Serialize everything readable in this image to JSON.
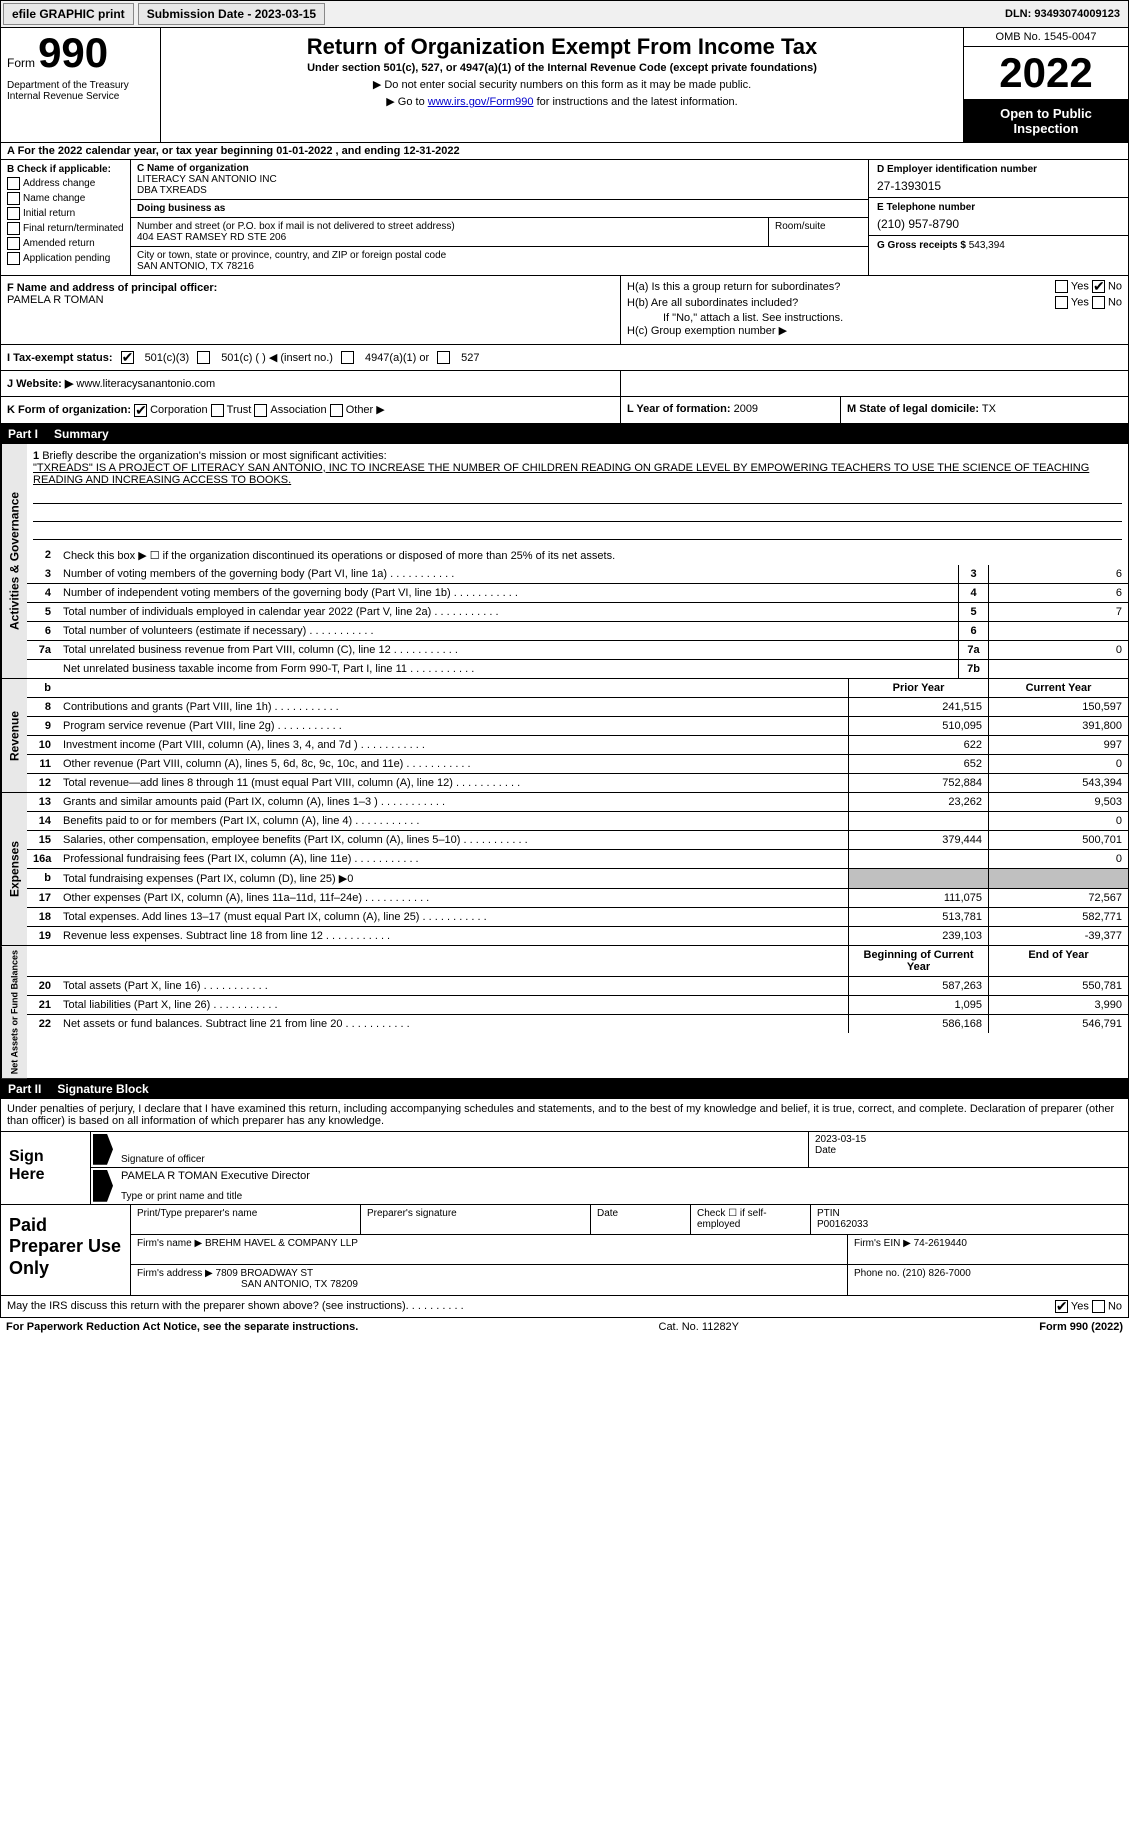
{
  "topbar": {
    "efile": "efile GRAPHIC print",
    "submission_label": "Submission Date - 2023-03-15",
    "dln": "DLN: 93493074009123"
  },
  "header": {
    "form_word": "Form",
    "form_num": "990",
    "dept": "Department of the Treasury\nInternal Revenue Service",
    "title": "Return of Organization Exempt From Income Tax",
    "sub": "Under section 501(c), 527, or 4947(a)(1) of the Internal Revenue Code (except private foundations)",
    "note1": "▶ Do not enter social security numbers on this form as it may be made public.",
    "note2_pre": "▶ Go to ",
    "note2_link": "www.irs.gov/Form990",
    "note2_post": " for instructions and the latest information.",
    "omb": "OMB No. 1545-0047",
    "year": "2022",
    "open": "Open to Public Inspection"
  },
  "row_a": "A For the 2022 calendar year, or tax year beginning 01-01-2022    , and ending 12-31-2022",
  "col_b": {
    "hdr": "B Check if applicable:",
    "opts": [
      "Address change",
      "Name change",
      "Initial return",
      "Final return/terminated",
      "Amended return",
      "Application pending"
    ]
  },
  "col_c": {
    "name_lbl": "C Name of organization",
    "name1": "LITERACY SAN ANTONIO INC",
    "name2": "DBA TXREADS",
    "dba_lbl": "Doing business as",
    "street_lbl": "Number and street (or P.O. box if mail is not delivered to street address)",
    "street": "404 EAST RAMSEY RD STE 206",
    "room_lbl": "Room/suite",
    "city_lbl": "City or town, state or province, country, and ZIP or foreign postal code",
    "city": "SAN ANTONIO, TX  78216"
  },
  "col_d": {
    "ein_lbl": "D Employer identification number",
    "ein": "27-1393015",
    "phone_lbl": "E Telephone number",
    "phone": "(210) 957-8790",
    "gross_lbl": "G Gross receipts $",
    "gross": "543,394"
  },
  "col_f": {
    "lbl": "F Name and address of principal officer:",
    "name": "PAMELA R TOMAN"
  },
  "col_h": {
    "ha": "H(a)  Is this a group return for subordinates?",
    "hb": "H(b)  Are all subordinates included?",
    "hb_note": "If \"No,\" attach a list. See instructions.",
    "hc": "H(c)  Group exemption number ▶",
    "yes": "Yes",
    "no": "No"
  },
  "sec_i": {
    "lbl": "I    Tax-exempt status:",
    "o1": "501(c)(3)",
    "o2": "501(c) (   ) ◀ (insert no.)",
    "o3": "4947(a)(1) or",
    "o4": "527"
  },
  "sec_j": {
    "lbl": "J   Website: ▶",
    "val": "www.literacysanantonio.com"
  },
  "sec_k": {
    "lbl": "K Form of organization:",
    "o1": "Corporation",
    "o2": "Trust",
    "o3": "Association",
    "o4": "Other ▶",
    "l_lbl": "L Year of formation:",
    "l_val": "2009",
    "m_lbl": "M State of legal domicile:",
    "m_val": "TX"
  },
  "part1": {
    "pt": "Part I",
    "title": "Summary"
  },
  "mission": {
    "num": "1",
    "lbl": "Briefly describe the organization's mission or most significant activities:",
    "text": "\"TXREADS\" IS A PROJECT OF LITERACY SAN ANTONIO, INC TO INCREASE THE NUMBER OF CHILDREN READING ON GRADE LEVEL BY EMPOWERING TEACHERS TO USE THE SCIENCE OF TEACHING READING AND INCREASING ACCESS TO BOOKS."
  },
  "gov_rows": [
    {
      "n": "2",
      "d": "Check this box ▶ ☐  if the organization discontinued its operations or disposed of more than 25% of its net assets."
    },
    {
      "n": "3",
      "d": "Number of voting members of the governing body (Part VI, line 1a)",
      "box": "3",
      "v": "6"
    },
    {
      "n": "4",
      "d": "Number of independent voting members of the governing body (Part VI, line 1b)",
      "box": "4",
      "v": "6"
    },
    {
      "n": "5",
      "d": "Total number of individuals employed in calendar year 2022 (Part V, line 2a)",
      "box": "5",
      "v": "7"
    },
    {
      "n": "6",
      "d": "Total number of volunteers (estimate if necessary)",
      "box": "6",
      "v": ""
    },
    {
      "n": "7a",
      "d": "Total unrelated business revenue from Part VIII, column (C), line 12",
      "box": "7a",
      "v": "0"
    },
    {
      "n": "",
      "d": "Net unrelated business taxable income from Form 990-T, Part I, line 11",
      "box": "7b",
      "v": ""
    }
  ],
  "py_cy_hdr": {
    "py": "Prior Year",
    "cy": "Current Year"
  },
  "rev_rows": [
    {
      "n": "8",
      "d": "Contributions and grants (Part VIII, line 1h)",
      "py": "241,515",
      "cy": "150,597"
    },
    {
      "n": "9",
      "d": "Program service revenue (Part VIII, line 2g)",
      "py": "510,095",
      "cy": "391,800"
    },
    {
      "n": "10",
      "d": "Investment income (Part VIII, column (A), lines 3, 4, and 7d )",
      "py": "622",
      "cy": "997"
    },
    {
      "n": "11",
      "d": "Other revenue (Part VIII, column (A), lines 5, 6d, 8c, 9c, 10c, and 11e)",
      "py": "652",
      "cy": "0"
    },
    {
      "n": "12",
      "d": "Total revenue—add lines 8 through 11 (must equal Part VIII, column (A), line 12)",
      "py": "752,884",
      "cy": "543,394"
    }
  ],
  "exp_rows": [
    {
      "n": "13",
      "d": "Grants and similar amounts paid (Part IX, column (A), lines 1–3 )",
      "py": "23,262",
      "cy": "9,503"
    },
    {
      "n": "14",
      "d": "Benefits paid to or for members (Part IX, column (A), line 4)",
      "py": "",
      "cy": "0"
    },
    {
      "n": "15",
      "d": "Salaries, other compensation, employee benefits (Part IX, column (A), lines 5–10)",
      "py": "379,444",
      "cy": "500,701"
    },
    {
      "n": "16a",
      "d": "Professional fundraising fees (Part IX, column (A), line 11e)",
      "py": "",
      "cy": "0"
    },
    {
      "n": "b",
      "d": "Total fundraising expenses (Part IX, column (D), line 25) ▶0",
      "shade": true
    },
    {
      "n": "17",
      "d": "Other expenses (Part IX, column (A), lines 11a–11d, 11f–24e)",
      "py": "111,075",
      "cy": "72,567"
    },
    {
      "n": "18",
      "d": "Total expenses. Add lines 13–17 (must equal Part IX, column (A), line 25)",
      "py": "513,781",
      "cy": "582,771"
    },
    {
      "n": "19",
      "d": "Revenue less expenses. Subtract line 18 from line 12",
      "py": "239,103",
      "cy": "-39,377"
    }
  ],
  "na_hdr": {
    "py": "Beginning of Current Year",
    "cy": "End of Year"
  },
  "na_rows": [
    {
      "n": "20",
      "d": "Total assets (Part X, line 16)",
      "py": "587,263",
      "cy": "550,781"
    },
    {
      "n": "21",
      "d": "Total liabilities (Part X, line 26)",
      "py": "1,095",
      "cy": "3,990"
    },
    {
      "n": "22",
      "d": "Net assets or fund balances. Subtract line 21 from line 20",
      "py": "586,168",
      "cy": "546,791"
    }
  ],
  "part2": {
    "pt": "Part II",
    "title": "Signature Block"
  },
  "sig_intro": "Under penalties of perjury, I declare that I have examined this return, including accompanying schedules and statements, and to the best of my knowledge and belief, it is true, correct, and complete. Declaration of preparer (other than officer) is based on all information of which preparer has any knowledge.",
  "sign": {
    "left": "Sign Here",
    "sig_lbl": "Signature of officer",
    "date_lbl": "Date",
    "date_val": "2023-03-15",
    "name": "PAMELA R TOMAN  Executive Director",
    "name_lbl": "Type or print name and title"
  },
  "prep": {
    "left": "Paid Preparer Use Only",
    "r1_c1": "Print/Type preparer's name",
    "r1_c2": "Preparer's signature",
    "r1_c3": "Date",
    "r1_c4_lbl": "Check ☐ if self-employed",
    "r1_c5_lbl": "PTIN",
    "r1_c5": "P00162033",
    "r2_lbl": "Firm's name    ▶",
    "r2_val": "BREHM HAVEL & COMPANY LLP",
    "r2_ein_lbl": "Firm's EIN ▶",
    "r2_ein": "74-2619440",
    "r3_lbl": "Firm's address ▶",
    "r3_val": "7809 BROADWAY ST",
    "r3_val2": "SAN ANTONIO, TX  78209",
    "r3_ph_lbl": "Phone no.",
    "r3_ph": "(210) 826-7000"
  },
  "discuss": {
    "q": "May the IRS discuss this return with the preparer shown above? (see instructions)",
    "yes": "Yes",
    "no": "No"
  },
  "footer": {
    "left": "For Paperwork Reduction Act Notice, see the separate instructions.",
    "mid": "Cat. No. 11282Y",
    "right": "Form 990 (2022)"
  },
  "side_labels": {
    "gov": "Activities & Governance",
    "rev": "Revenue",
    "exp": "Expenses",
    "na": "Net Assets or Fund Balances"
  }
}
